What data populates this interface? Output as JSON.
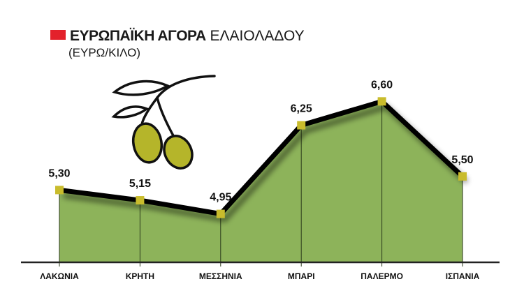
{
  "chart_data": {
    "type": "area",
    "title_bold": "ΕΥΡΩΠΑΪΚΗ ΑΓΟΡΑ",
    "title_rest": "ΕΛΑΙΟΛΑΔΟΥ",
    "subtitle": "(ΕΥΡΩ/ΚΙΛΟ)",
    "categories": [
      "ΛΑΚΩΝΙΑ",
      "ΚΡΗΤΗ",
      "ΜΕΣΣΗΝΙΑ",
      "ΜΠΑΡΙ",
      "ΠΑΛΕΡΜΟ",
      "ΙΣΠΑΝΙΑ"
    ],
    "values": [
      5.3,
      5.15,
      4.95,
      6.25,
      6.6,
      5.5
    ],
    "data_labels": [
      "5,30",
      "5,15",
      "4,95",
      "6,25",
      "6,60",
      "5,50"
    ],
    "ylim": [
      4.24,
      6.9
    ],
    "grid": false,
    "colors": {
      "fill": "#8db35a",
      "line": "#000000",
      "marker": "#c9bc2c",
      "title_square": "#e3212b",
      "olive": "#b5b52a"
    },
    "decoration_icon": "olive-branch-icon"
  }
}
